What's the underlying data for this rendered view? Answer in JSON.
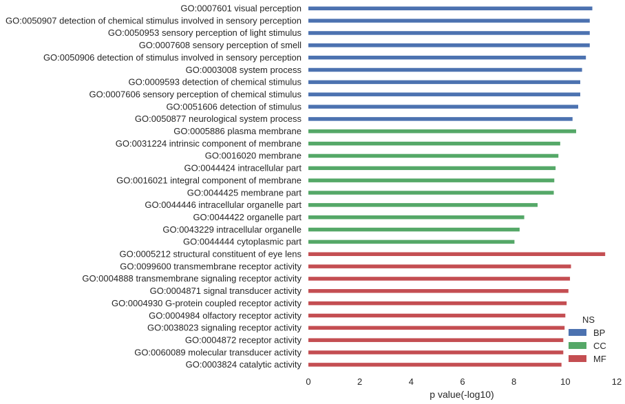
{
  "chart_data": {
    "type": "bar",
    "orientation": "horizontal",
    "title": "",
    "xlabel": "p value(-log10)",
    "ylabel": "",
    "xlim": [
      0,
      12
    ],
    "xticks": [
      "0",
      "2",
      "4",
      "6",
      "8",
      "10",
      "12"
    ],
    "grid": false,
    "legend": {
      "title": "NS",
      "placement": "bottom-right",
      "entries": [
        {
          "name": "BP",
          "color": "#4c72b0"
        },
        {
          "name": "CC",
          "color": "#55a868"
        },
        {
          "name": "MF",
          "color": "#c44e52"
        }
      ]
    },
    "bars": [
      {
        "label": "GO:0007601 visual perception",
        "value": 11.05,
        "group": "BP"
      },
      {
        "label": "GO:0050907 detection of chemical stimulus involved in sensory perception",
        "value": 10.95,
        "group": "BP"
      },
      {
        "label": "GO:0050953 sensory perception of light stimulus",
        "value": 10.95,
        "group": "BP"
      },
      {
        "label": "GO:0007608 sensory perception of smell",
        "value": 10.95,
        "group": "BP"
      },
      {
        "label": "GO:0050906 detection of stimulus involved in sensory perception",
        "value": 10.8,
        "group": "BP"
      },
      {
        "label": "GO:0003008 system process",
        "value": 10.65,
        "group": "BP"
      },
      {
        "label": "GO:0009593 detection of chemical stimulus",
        "value": 10.58,
        "group": "BP"
      },
      {
        "label": "GO:0007606 sensory perception of chemical stimulus",
        "value": 10.58,
        "group": "BP"
      },
      {
        "label": "GO:0051606 detection of stimulus",
        "value": 10.5,
        "group": "BP"
      },
      {
        "label": "GO:0050877 neurological system process",
        "value": 10.28,
        "group": "BP"
      },
      {
        "label": "GO:0005886 plasma membrane",
        "value": 10.42,
        "group": "CC"
      },
      {
        "label": "GO:0031224 intrinsic component of membrane",
        "value": 9.8,
        "group": "CC"
      },
      {
        "label": "GO:0016020 membrane",
        "value": 9.73,
        "group": "CC"
      },
      {
        "label": "GO:0044424 intracellular part",
        "value": 9.62,
        "group": "CC"
      },
      {
        "label": "GO:0016021 integral component of membrane",
        "value": 9.57,
        "group": "CC"
      },
      {
        "label": "GO:0044425 membrane part",
        "value": 9.55,
        "group": "CC"
      },
      {
        "label": "GO:0044446 intracellular organelle part",
        "value": 8.92,
        "group": "CC"
      },
      {
        "label": "GO:0044422 organelle part",
        "value": 8.4,
        "group": "CC"
      },
      {
        "label": "GO:0043229 intracellular organelle",
        "value": 8.22,
        "group": "CC"
      },
      {
        "label": "GO:0044444 cytoplasmic part",
        "value": 8.02,
        "group": "CC"
      },
      {
        "label": "GO:0005212 structural constituent of eye lens",
        "value": 11.55,
        "group": "MF"
      },
      {
        "label": "GO:0099600 transmembrane receptor activity",
        "value": 10.22,
        "group": "MF"
      },
      {
        "label": "GO:0004888 transmembrane signaling receptor activity",
        "value": 10.18,
        "group": "MF"
      },
      {
        "label": "GO:0004871 signal transducer activity",
        "value": 10.12,
        "group": "MF"
      },
      {
        "label": "GO:0004930 G-protein coupled receptor activity",
        "value": 10.05,
        "group": "MF"
      },
      {
        "label": "GO:0004984 olfactory receptor activity",
        "value": 10.0,
        "group": "MF"
      },
      {
        "label": "GO:0038023 signaling receptor activity",
        "value": 9.97,
        "group": "MF"
      },
      {
        "label": "GO:0004872 receptor activity",
        "value": 9.92,
        "group": "MF"
      },
      {
        "label": "GO:0060089 molecular transducer activity",
        "value": 9.92,
        "group": "MF"
      },
      {
        "label": "GO:0003824 catalytic activity",
        "value": 9.85,
        "group": "MF"
      }
    ]
  }
}
